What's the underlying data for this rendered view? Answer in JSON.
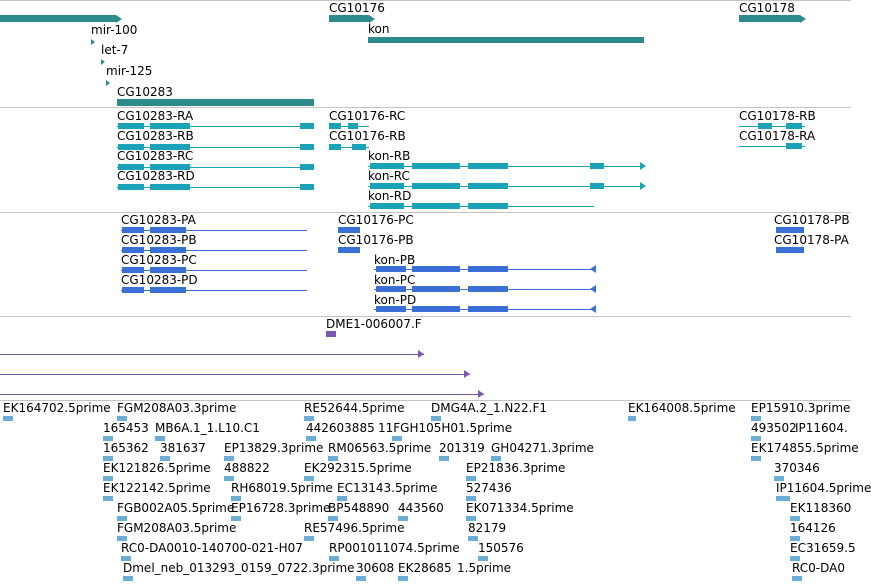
{
  "colors": {
    "gene": "#2e8b8b",
    "transcript": "#1aa3b8",
    "protein": "#3a6fd6",
    "cdna": "#7a57b0",
    "est": "#6aaed8",
    "divider": "#c4c4c4"
  },
  "tracks": {
    "genes": {
      "items": [
        {
          "label": "mir-100"
        },
        {
          "label": "let-7"
        },
        {
          "label": "mir-125"
        },
        {
          "label": "CG10283"
        },
        {
          "label": "CG10176"
        },
        {
          "label": "kon"
        },
        {
          "label": "CG10178"
        }
      ]
    },
    "transcripts": {
      "items": [
        {
          "label": "CG10283-RA"
        },
        {
          "label": "CG10283-RB"
        },
        {
          "label": "CG10283-RC"
        },
        {
          "label": "CG10283-RD"
        },
        {
          "label": "CG10176-RC"
        },
        {
          "label": "CG10176-RB"
        },
        {
          "label": "kon-RB"
        },
        {
          "label": "kon-RC"
        },
        {
          "label": "kon-RD"
        },
        {
          "label": "CG10178-RB"
        },
        {
          "label": "CG10178-RA"
        }
      ]
    },
    "proteins": {
      "items": [
        {
          "label": "CG10283-PA"
        },
        {
          "label": "CG10283-PB"
        },
        {
          "label": "CG10283-PC"
        },
        {
          "label": "CG10283-PD"
        },
        {
          "label": "CG10176-PC"
        },
        {
          "label": "CG10176-PB"
        },
        {
          "label": "kon-PB"
        },
        {
          "label": "kon-PC"
        },
        {
          "label": "kon-PD"
        },
        {
          "label": "CG10178-PB"
        },
        {
          "label": "CG10178-PA"
        }
      ]
    },
    "cdna": {
      "items": [
        {
          "label": "DME1-006007.F"
        }
      ]
    },
    "est": {
      "items": [
        {
          "label": "EK164702.5prime"
        },
        {
          "label": "FGM208A03.3prime"
        },
        {
          "label": "RE52644.5prime"
        },
        {
          "label": "DMG4A.2_1.N22.F1"
        },
        {
          "label": "EK164008.5prime"
        },
        {
          "label": "EP15910.3prime"
        },
        {
          "label": "165453"
        },
        {
          "label": "MB6A.1_1.L10.C1"
        },
        {
          "label": "442603885"
        },
        {
          "label": "11FGH105H01.5prime"
        },
        {
          "label": "493502"
        },
        {
          "label": "IP11604."
        },
        {
          "label": "165362"
        },
        {
          "label": "381637"
        },
        {
          "label": "EP13829.3prime"
        },
        {
          "label": "RM06563.5prime"
        },
        {
          "label": "201319"
        },
        {
          "label": "GH04271.3prime"
        },
        {
          "label": "EK174855.5prime"
        },
        {
          "label": "EK121826.5prime"
        },
        {
          "label": "488822"
        },
        {
          "label": "EK292315.5prime"
        },
        {
          "label": "EP21836.3prime"
        },
        {
          "label": "370346"
        },
        {
          "label": "EK122142.5prime"
        },
        {
          "label": "RH68019.5prime"
        },
        {
          "label": "EC13143.5prime"
        },
        {
          "label": "527436"
        },
        {
          "label": "IP11604.5prime"
        },
        {
          "label": "FGB002A05.5prime"
        },
        {
          "label": "EP16728.3prime"
        },
        {
          "label": "BP548890"
        },
        {
          "label": "443560"
        },
        {
          "label": "EK071334.5prime"
        },
        {
          "label": "EK118360"
        },
        {
          "label": "FGM208A03.5prime"
        },
        {
          "label": "RE57496.5prime"
        },
        {
          "label": "82179"
        },
        {
          "label": "164126"
        },
        {
          "label": "RC0-DA0010-140700-021-H07"
        },
        {
          "label": "RP001011074.5prime"
        },
        {
          "label": "150576"
        },
        {
          "label": "EC31659.5"
        },
        {
          "label": "Dmel_neb_013293_0159_0722.3prime"
        },
        {
          "label": "30608"
        },
        {
          "label": "EK28685"
        },
        {
          "label": "1.5prime"
        },
        {
          "label": "RC0-DA0"
        }
      ]
    }
  }
}
